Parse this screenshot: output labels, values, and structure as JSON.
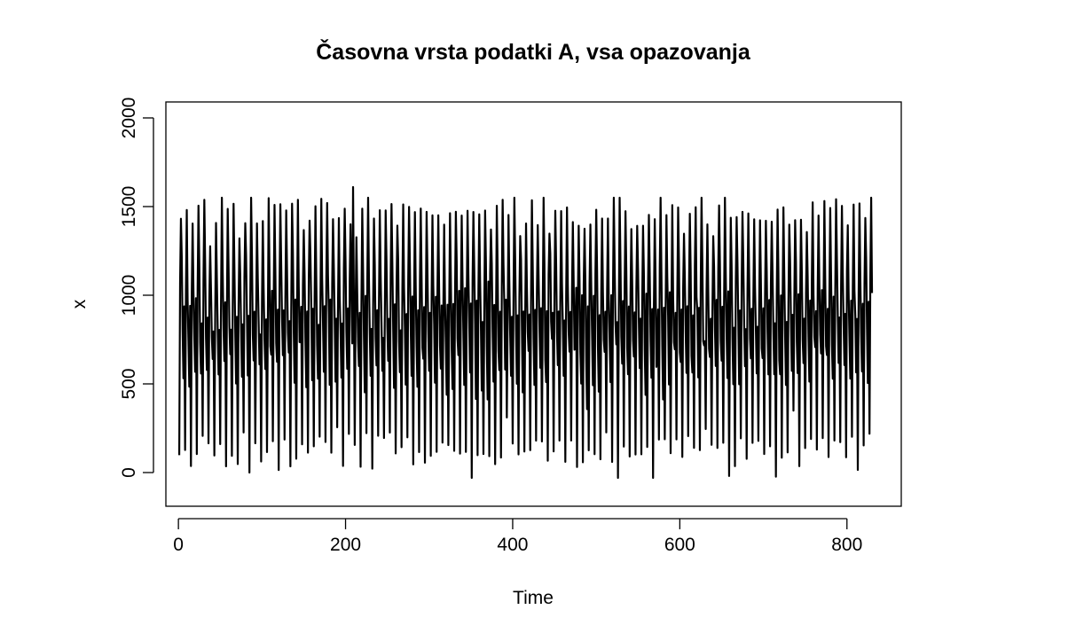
{
  "chart_data": {
    "type": "line",
    "title": "Časovna vrsta podatki A, vsa opazovanja",
    "xlabel": "Time",
    "ylabel": "x",
    "xlim": [
      -15,
      865
    ],
    "ylim": [
      -190,
      2090
    ],
    "x_ticks": [
      0,
      200,
      400,
      600,
      800
    ],
    "y_ticks": [
      0,
      500,
      1000,
      1500,
      2000
    ],
    "grid": false,
    "legend": "none",
    "x_start": 1,
    "x_end": 830,
    "cycle_length": 7,
    "cycle_profile": [
      120,
      1000,
      1460,
      1120,
      780,
      560,
      920
    ],
    "approx_range": [
      -30,
      1610
    ],
    "peak": {
      "x": 209,
      "y": 1610
    },
    "series_color": "#000000"
  }
}
